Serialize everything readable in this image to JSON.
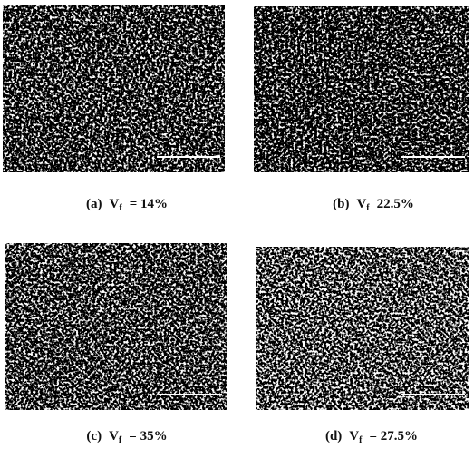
{
  "figure": {
    "panels": [
      {
        "label": "(a)",
        "variable": "V",
        "subscript": "f",
        "value": "= 14%"
      },
      {
        "label": "(b)",
        "variable": "V",
        "subscript": "f",
        "value": "22.5%"
      },
      {
        "label": "(c)",
        "variable": "V",
        "subscript": "f",
        "value": "= 35%"
      },
      {
        "label": "(d)",
        "variable": "V",
        "subscript": "f",
        "value": "= 27.5%"
      }
    ]
  }
}
